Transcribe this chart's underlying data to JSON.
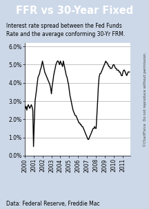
{
  "title": "FFR vs 30-Year Fixed",
  "subtitle": "Interest rate spread between the Fed Funds\nRate and the average conforming 30-Yr FRM.",
  "footnote": "Data: Federal Reserve, Freddie Mac",
  "watermark": "©ChartForce  Do not reproduce without permission.",
  "background_color": "#ccd8e8",
  "plot_bg_color": "#ffffff",
  "title_bg_color": "#1a3a8c",
  "title_color": "#ffffff",
  "line_color": "#000000",
  "ylim": [
    0.0,
    0.062
  ],
  "yticks": [
    0.0,
    0.01,
    0.02,
    0.03,
    0.04,
    0.05,
    0.06
  ],
  "ytick_labels": [
    "0.0%",
    "1.0%",
    "2.0%",
    "3.0%",
    "4.0%",
    "5.0%",
    "6.0%"
  ],
  "data": [
    [
      2000.0,
      0.028
    ],
    [
      2000.08,
      0.026
    ],
    [
      2000.17,
      0.027
    ],
    [
      2000.25,
      0.025
    ],
    [
      2000.33,
      0.027
    ],
    [
      2000.42,
      0.028
    ],
    [
      2000.5,
      0.027
    ],
    [
      2000.58,
      0.026
    ],
    [
      2000.67,
      0.027
    ],
    [
      2000.75,
      0.028
    ],
    [
      2000.83,
      0.027
    ],
    [
      2000.92,
      0.025
    ],
    [
      2001.0,
      0.005
    ],
    [
      2001.08,
      0.018
    ],
    [
      2001.17,
      0.03
    ],
    [
      2001.25,
      0.033
    ],
    [
      2001.33,
      0.036
    ],
    [
      2001.42,
      0.04
    ],
    [
      2001.5,
      0.043
    ],
    [
      2001.58,
      0.044
    ],
    [
      2001.67,
      0.045
    ],
    [
      2001.75,
      0.047
    ],
    [
      2001.83,
      0.048
    ],
    [
      2001.92,
      0.05
    ],
    [
      2002.0,
      0.052
    ],
    [
      2002.08,
      0.05
    ],
    [
      2002.17,
      0.048
    ],
    [
      2002.25,
      0.046
    ],
    [
      2002.33,
      0.045
    ],
    [
      2002.42,
      0.044
    ],
    [
      2002.5,
      0.043
    ],
    [
      2002.58,
      0.042
    ],
    [
      2002.67,
      0.041
    ],
    [
      2002.75,
      0.04
    ],
    [
      2002.83,
      0.039
    ],
    [
      2002.92,
      0.037
    ],
    [
      2003.0,
      0.034
    ],
    [
      2003.08,
      0.038
    ],
    [
      2003.17,
      0.041
    ],
    [
      2003.25,
      0.044
    ],
    [
      2003.33,
      0.046
    ],
    [
      2003.42,
      0.048
    ],
    [
      2003.5,
      0.05
    ],
    [
      2003.58,
      0.051
    ],
    [
      2003.67,
      0.052
    ],
    [
      2003.75,
      0.052
    ],
    [
      2003.83,
      0.051
    ],
    [
      2003.92,
      0.05
    ],
    [
      2004.0,
      0.052
    ],
    [
      2004.08,
      0.051
    ],
    [
      2004.17,
      0.05
    ],
    [
      2004.25,
      0.049
    ],
    [
      2004.33,
      0.052
    ],
    [
      2004.42,
      0.05
    ],
    [
      2004.5,
      0.048
    ],
    [
      2004.58,
      0.046
    ],
    [
      2004.67,
      0.044
    ],
    [
      2004.75,
      0.043
    ],
    [
      2004.83,
      0.041
    ],
    [
      2004.92,
      0.039
    ],
    [
      2005.0,
      0.036
    ],
    [
      2005.08,
      0.033
    ],
    [
      2005.17,
      0.031
    ],
    [
      2005.25,
      0.029
    ],
    [
      2005.33,
      0.027
    ],
    [
      2005.42,
      0.025
    ],
    [
      2005.5,
      0.024
    ],
    [
      2005.58,
      0.023
    ],
    [
      2005.67,
      0.022
    ],
    [
      2005.75,
      0.022
    ],
    [
      2005.83,
      0.021
    ],
    [
      2005.92,
      0.02
    ],
    [
      2006.0,
      0.019
    ],
    [
      2006.08,
      0.018
    ],
    [
      2006.17,
      0.018
    ],
    [
      2006.25,
      0.017
    ],
    [
      2006.33,
      0.017
    ],
    [
      2006.42,
      0.016
    ],
    [
      2006.5,
      0.016
    ],
    [
      2006.58,
      0.015
    ],
    [
      2006.67,
      0.014
    ],
    [
      2006.75,
      0.013
    ],
    [
      2006.83,
      0.012
    ],
    [
      2006.92,
      0.011
    ],
    [
      2007.0,
      0.01
    ],
    [
      2007.08,
      0.009
    ],
    [
      2007.17,
      0.009
    ],
    [
      2007.25,
      0.01
    ],
    [
      2007.33,
      0.011
    ],
    [
      2007.42,
      0.012
    ],
    [
      2007.5,
      0.013
    ],
    [
      2007.58,
      0.014
    ],
    [
      2007.67,
      0.015
    ],
    [
      2007.75,
      0.015
    ],
    [
      2007.83,
      0.016
    ],
    [
      2007.92,
      0.015
    ],
    [
      2008.0,
      0.015
    ],
    [
      2008.08,
      0.022
    ],
    [
      2008.17,
      0.03
    ],
    [
      2008.25,
      0.038
    ],
    [
      2008.33,
      0.043
    ],
    [
      2008.42,
      0.045
    ],
    [
      2008.5,
      0.045
    ],
    [
      2008.58,
      0.046
    ],
    [
      2008.67,
      0.047
    ],
    [
      2008.75,
      0.048
    ],
    [
      2008.83,
      0.049
    ],
    [
      2008.92,
      0.05
    ],
    [
      2009.0,
      0.051
    ],
    [
      2009.08,
      0.052
    ],
    [
      2009.17,
      0.051
    ],
    [
      2009.25,
      0.051
    ],
    [
      2009.33,
      0.05
    ],
    [
      2009.42,
      0.049
    ],
    [
      2009.5,
      0.049
    ],
    [
      2009.58,
      0.048
    ],
    [
      2009.67,
      0.048
    ],
    [
      2009.75,
      0.048
    ],
    [
      2009.83,
      0.049
    ],
    [
      2009.92,
      0.05
    ],
    [
      2010.0,
      0.05
    ],
    [
      2010.08,
      0.049
    ],
    [
      2010.17,
      0.048
    ],
    [
      2010.25,
      0.048
    ],
    [
      2010.33,
      0.047
    ],
    [
      2010.42,
      0.047
    ],
    [
      2010.5,
      0.047
    ],
    [
      2010.58,
      0.046
    ],
    [
      2010.67,
      0.046
    ],
    [
      2010.75,
      0.045
    ],
    [
      2010.83,
      0.044
    ],
    [
      2010.92,
      0.044
    ],
    [
      2011.0,
      0.046
    ],
    [
      2011.08,
      0.047
    ],
    [
      2011.17,
      0.047
    ],
    [
      2011.25,
      0.046
    ],
    [
      2011.33,
      0.045
    ],
    [
      2011.42,
      0.044
    ],
    [
      2011.5,
      0.045
    ],
    [
      2011.58,
      0.046
    ],
    [
      2011.67,
      0.046
    ],
    [
      2011.75,
      0.046
    ]
  ]
}
